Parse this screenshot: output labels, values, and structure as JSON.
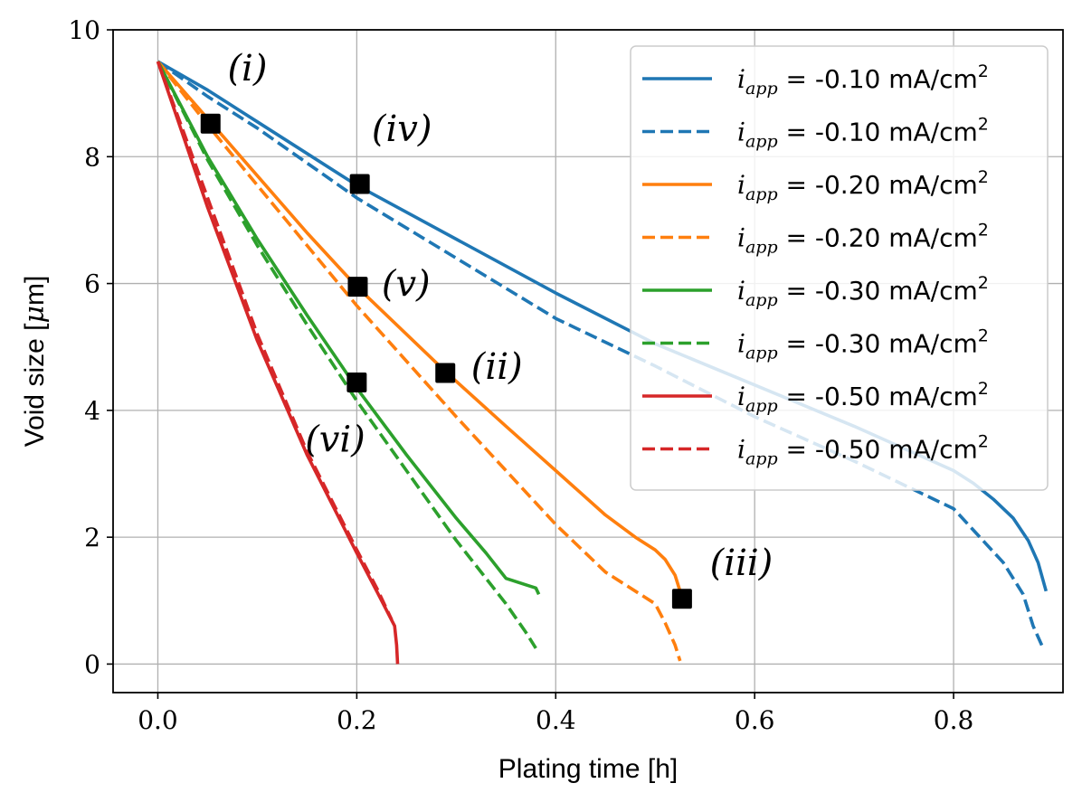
{
  "chart_data": {
    "type": "line",
    "title": "",
    "xlabel": "Plating time [h]",
    "ylabel_text": "Void size [",
    "ylabel_mu": "μ",
    "ylabel_unit": "m]",
    "xlim": [
      -0.045,
      0.91
    ],
    "ylim": [
      -0.45,
      10
    ],
    "x_ticks": [
      0.0,
      0.2,
      0.4,
      0.6,
      0.8
    ],
    "x_tick_labels": [
      "0.0",
      "0.2",
      "0.4",
      "0.6",
      "0.8"
    ],
    "y_ticks": [
      0,
      2,
      4,
      6,
      8,
      10
    ],
    "y_tick_labels": [
      "0",
      "2",
      "4",
      "6",
      "8",
      "10"
    ],
    "grid": true,
    "legend_position": "top-right",
    "legend_prefix": "i",
    "legend_subscript": "app",
    "legend_equals": " = ",
    "colors": {
      "blue": "#1f77b4",
      "orange": "#ff7f0e",
      "green": "#2ca02c",
      "red": "#d62728",
      "marker": "#000000",
      "grid": "#b0b0b0"
    },
    "series": [
      {
        "name": "-0.10 mA/cm",
        "sup": "2",
        "color": "blue",
        "style": "solid",
        "x": [
          0,
          0.05,
          0.1,
          0.15,
          0.2,
          0.3,
          0.4,
          0.5,
          0.6,
          0.7,
          0.8,
          0.82,
          0.84,
          0.86,
          0.875,
          0.885,
          0.893
        ],
        "y": [
          9.5,
          9.05,
          8.55,
          8.05,
          7.55,
          6.7,
          5.85,
          5.05,
          4.4,
          3.75,
          3.05,
          2.85,
          2.6,
          2.3,
          1.95,
          1.6,
          1.15
        ]
      },
      {
        "name": "-0.10 mA/cm",
        "sup": "2",
        "color": "blue",
        "style": "dashed",
        "x": [
          0,
          0.05,
          0.1,
          0.15,
          0.2,
          0.3,
          0.4,
          0.5,
          0.6,
          0.7,
          0.8,
          0.85,
          0.87,
          0.88,
          0.89
        ],
        "y": [
          9.5,
          8.95,
          8.45,
          7.9,
          7.35,
          6.4,
          5.45,
          4.7,
          3.9,
          3.2,
          2.45,
          1.6,
          1.1,
          0.6,
          0.25
        ]
      },
      {
        "name": "-0.20 mA/cm",
        "sup": "2",
        "color": "orange",
        "style": "solid",
        "x": [
          0,
          0.05,
          0.1,
          0.15,
          0.2,
          0.29,
          0.35,
          0.4,
          0.45,
          0.48,
          0.5,
          0.51,
          0.52,
          0.527
        ],
        "y": [
          9.5,
          8.6,
          7.7,
          6.8,
          5.95,
          4.6,
          3.75,
          3.05,
          2.35,
          2.0,
          1.8,
          1.65,
          1.4,
          1.05
        ]
      },
      {
        "name": "-0.20 mA/cm",
        "sup": "2",
        "color": "orange",
        "style": "dashed",
        "x": [
          0,
          0.05,
          0.1,
          0.15,
          0.2,
          0.3,
          0.4,
          0.45,
          0.5,
          0.51,
          0.52,
          0.525
        ],
        "y": [
          9.5,
          8.5,
          7.55,
          6.6,
          5.65,
          3.9,
          2.2,
          1.45,
          0.95,
          0.65,
          0.3,
          0.05
        ]
      },
      {
        "name": "-0.30 mA/cm",
        "sup": "2",
        "color": "green",
        "style": "solid",
        "x": [
          0,
          0.05,
          0.1,
          0.15,
          0.2,
          0.25,
          0.3,
          0.33,
          0.35,
          0.37,
          0.38,
          0.383
        ],
        "y": [
          9.5,
          8.0,
          6.7,
          5.5,
          4.35,
          3.3,
          2.3,
          1.75,
          1.35,
          1.25,
          1.2,
          1.1
        ]
      },
      {
        "name": "-0.30 mA/cm",
        "sup": "2",
        "color": "green",
        "style": "dashed",
        "x": [
          0,
          0.05,
          0.1,
          0.15,
          0.2,
          0.25,
          0.3,
          0.35,
          0.37,
          0.38
        ],
        "y": [
          9.5,
          7.95,
          6.6,
          5.35,
          4.15,
          3.05,
          1.95,
          0.95,
          0.5,
          0.25
        ]
      },
      {
        "name": "-0.50 mA/cm",
        "sup": "2",
        "color": "red",
        "style": "solid",
        "x": [
          0,
          0.05,
          0.1,
          0.15,
          0.2,
          0.22,
          0.238,
          0.24,
          0.241
        ],
        "y": [
          9.5,
          7.2,
          5.1,
          3.3,
          1.75,
          1.15,
          0.6,
          0.3,
          0.0
        ]
      },
      {
        "name": "-0.50 mA/cm",
        "sup": "2",
        "color": "red",
        "style": "dashed",
        "x": [
          0,
          0.05,
          0.1,
          0.15,
          0.2,
          0.22,
          0.235
        ],
        "y": [
          9.5,
          7.35,
          5.2,
          3.35,
          1.8,
          1.2,
          0.7
        ]
      }
    ],
    "markers": [
      {
        "x": 0.053,
        "y": 8.52
      },
      {
        "x": 0.203,
        "y": 7.57
      },
      {
        "x": 0.201,
        "y": 5.95
      },
      {
        "x": 0.289,
        "y": 4.59
      },
      {
        "x": 0.2,
        "y": 4.44
      },
      {
        "x": 0.527,
        "y": 1.03
      }
    ],
    "annotations": [
      {
        "text": "(i)",
        "x": 0.07,
        "y": 9.2
      },
      {
        "text": "(iv)",
        "x": 0.215,
        "y": 8.25
      },
      {
        "text": "(v)",
        "x": 0.225,
        "y": 5.8
      },
      {
        "text": "(ii)",
        "x": 0.315,
        "y": 4.5
      },
      {
        "text": "(vi)",
        "x": 0.148,
        "y": 3.35
      },
      {
        "text": "(iii)",
        "x": 0.555,
        "y": 1.4
      }
    ]
  }
}
